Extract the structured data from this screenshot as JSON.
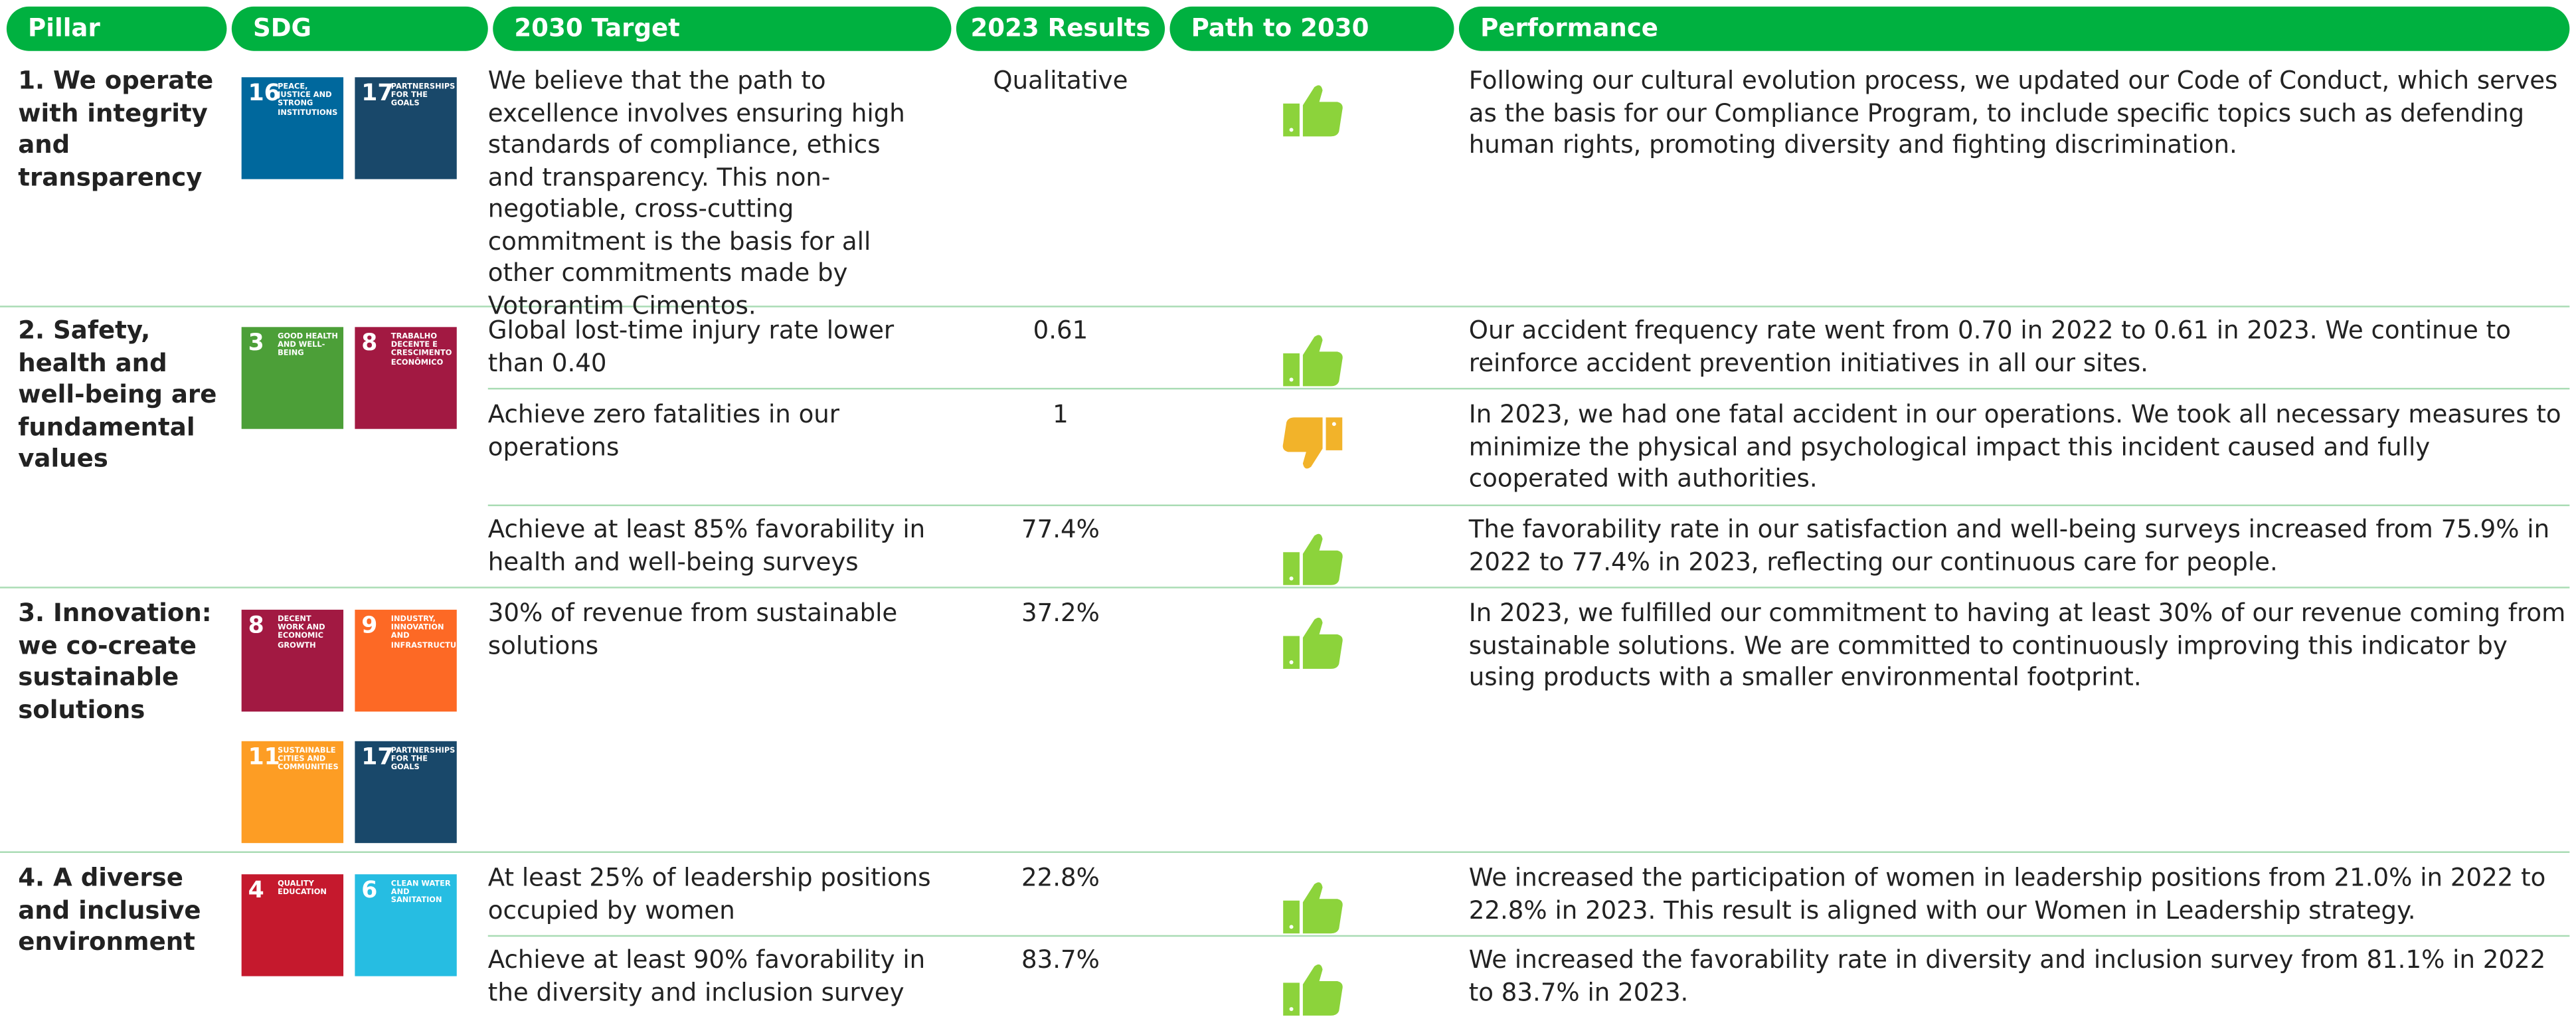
{
  "columns": [
    "Pillar",
    "SDG",
    "2030 Target",
    "2023 Results",
    "Path to 2030",
    "Performance"
  ],
  "pillars": [
    {
      "name": "1. We operate with integrity and transparency",
      "sdgs": [
        {
          "number": "16",
          "label": "PEACE, JUSTICE AND STRONG INSTITUTIONS",
          "color": "#00689d"
        },
        {
          "number": "17",
          "label": "PARTNERSHIPS FOR THE GOALS",
          "color": "#19486a"
        }
      ],
      "targets": [
        {
          "target": "We believe that the path to excellence involves ensuring high standards of compliance, ethics and transparency. This non-negotiable, cross-cutting commitment is the basis for all other commitments made by Votorantim Cimentos.",
          "result": "Qualitative",
          "path": "up",
          "performance": "Following our cultural evolution process, we updated our Code of Conduct, which serves as the basis for our Compliance Program, to include specific topics such as defending human rights, promoting diversity and fighting discrimination."
        }
      ]
    },
    {
      "name": "2. Safety, health and well-being are fundamental values",
      "sdgs": [
        {
          "number": "3",
          "label": "GOOD HEALTH AND WELL-BEING",
          "color": "#4c9f38"
        },
        {
          "number": "8",
          "label": "TRABALHO DECENTE E CRESCIMENTO ECONÔMICO",
          "color": "#a21942"
        }
      ],
      "targets": [
        {
          "target": "Global lost-time injury rate lower than 0.40",
          "result": "0.61",
          "path": "up",
          "performance": "Our accident frequency rate went from 0.70 in 2022 to 0.61 in 2023. We continue to reinforce accident prevention initiatives in all our sites."
        },
        {
          "target": "Achieve zero fatalities in our operations",
          "result": "1",
          "path": "down",
          "performance": "In 2023, we had one fatal accident in our operations. We took all necessary measures to minimize the physical and psychological impact this incident caused and fully cooperated with authorities."
        },
        {
          "target": "Achieve at least 85% favorability in health and well-being surveys",
          "result": "77.4%",
          "path": "up",
          "performance": "The favorability rate in our satisfaction and well-being surveys increased from 75.9% in 2022 to 77.4% in 2023, reflecting our continuous care for people."
        }
      ]
    },
    {
      "name": "3. Innovation: we co-create sustainable solutions",
      "sdgs": [
        {
          "number": "8",
          "label": "DECENT WORK AND ECONOMIC GROWTH",
          "color": "#a21942"
        },
        {
          "number": "9",
          "label": "INDUSTRY, INNOVATION AND INFRASTRUCTURE",
          "color": "#fd6925"
        },
        {
          "number": "11",
          "label": "SUSTAINABLE CITIES AND COMMUNITIES",
          "color": "#fd9d24"
        },
        {
          "number": "17",
          "label": "PARTNERSHIPS FOR THE GOALS",
          "color": "#19486a"
        }
      ],
      "targets": [
        {
          "target": "30% of revenue from sustainable solutions",
          "result": "37.2%",
          "path": "up",
          "performance": "In 2023, we fulfilled our commitment to having at least 30% of our revenue coming from sustainable solutions. We are committed to continuously improving this indicator by using products with a smaller environmental footprint."
        }
      ]
    },
    {
      "name": "4. A diverse and inclusive environment",
      "sdgs": [
        {
          "number": "4",
          "label": "QUALITY EDUCATION",
          "color": "#c5192d"
        },
        {
          "number": "6",
          "label": "CLEAN WATER AND SANITATION",
          "color": "#26bde2"
        }
      ],
      "targets": [
        {
          "target": "At least 25% of leadership positions occupied by women",
          "result": "22.8%",
          "path": "up",
          "performance": "We increased the participation of women in leadership positions from 21.0% in 2022 to 22.8% in 2023. This result is aligned with our Women in Leadership strategy."
        },
        {
          "target": "Achieve at least 90% favorability in the diversity and inclusion survey",
          "result": "83.7%",
          "path": "up",
          "performance": "We increased the favorability rate in diversity and inclusion survey from 81.1% in 2022 to 83.7% in 2023."
        }
      ]
    }
  ]
}
